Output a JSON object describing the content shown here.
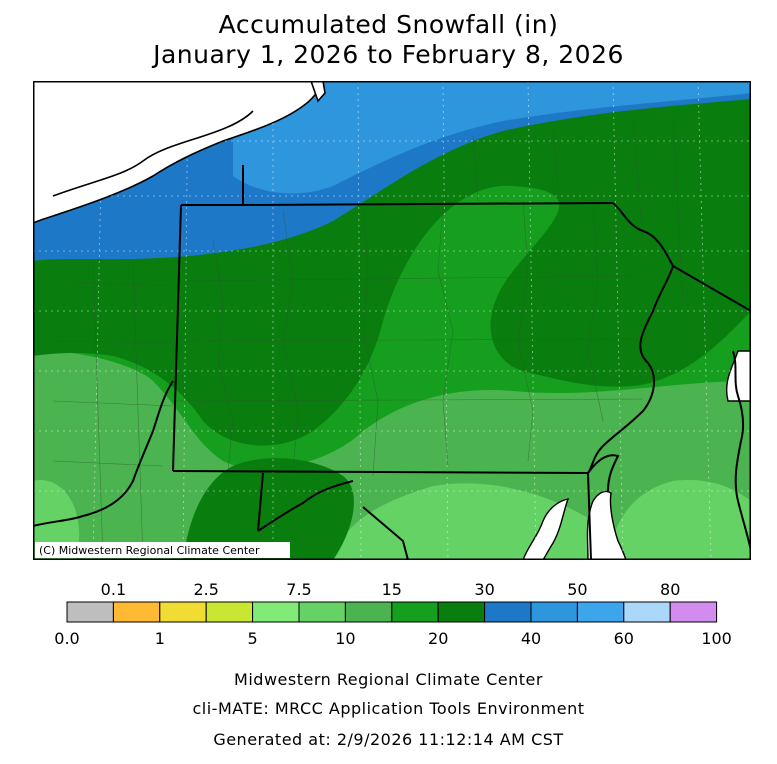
{
  "title_line1": "Accumulated Snowfall (in)",
  "title_line2": "January 1, 2026 to February 8, 2026",
  "copyright": "(C) Midwestern Regional Climate Center",
  "legend": {
    "top_labels": [
      "0.1",
      "2.5",
      "7.5",
      "15",
      "30",
      "50",
      "80"
    ],
    "bottom_labels": [
      "0.0",
      "1",
      "5",
      "10",
      "20",
      "40",
      "60",
      "100"
    ],
    "bins": [
      {
        "range": "0.0-0.1",
        "color": "#bebebe"
      },
      {
        "range": "0.1-1",
        "color": "#ffb932"
      },
      {
        "range": "1-2.5",
        "color": "#f0dc32"
      },
      {
        "range": "2.5-5",
        "color": "#c8e632"
      },
      {
        "range": "5-7.5",
        "color": "#82eb78"
      },
      {
        "range": "7.5-10",
        "color": "#64d264"
      },
      {
        "range": "10-15",
        "color": "#4bb450"
      },
      {
        "range": "15-20",
        "color": "#169e1e"
      },
      {
        "range": "20-30",
        "color": "#0a7d0f"
      },
      {
        "range": "30-40",
        "color": "#1e78c8"
      },
      {
        "range": "40-50",
        "color": "#2d96dc"
      },
      {
        "range": "50-60",
        "color": "#3ca5eb"
      },
      {
        "range": "60-80",
        "color": "#aad7fa"
      },
      {
        "range": "80-100",
        "color": "#d28cf0"
      }
    ]
  },
  "footer": {
    "line1": "Midwestern Regional Climate Center",
    "line2": "cli-MATE: MRCC Application Tools Environment",
    "line3": "Generated at: 2/9/2026 11:12:14 AM CST"
  }
}
